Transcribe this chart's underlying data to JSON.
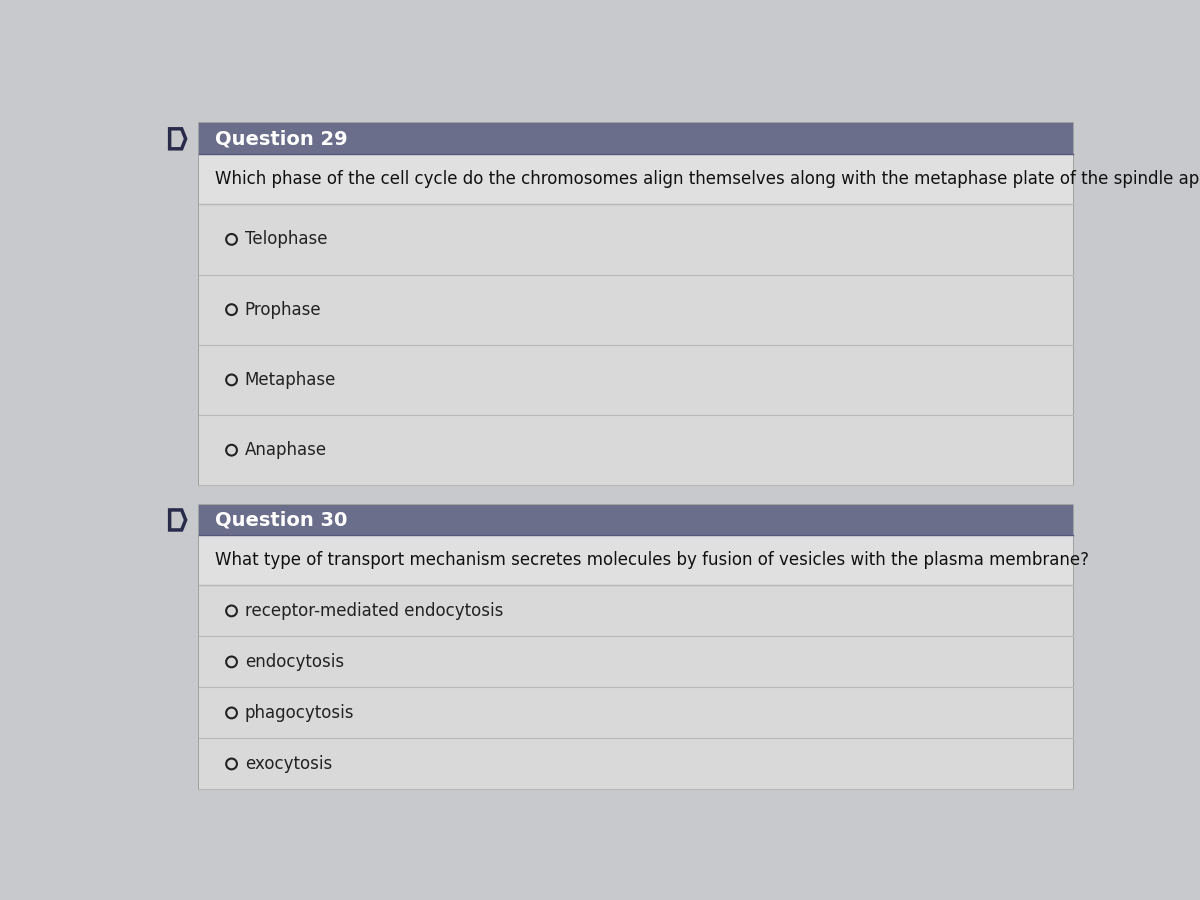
{
  "bg_color": "#c8c9cc",
  "card_bg": "#e2e2e2",
  "card_bg_inner": "#d8d8d8",
  "header_bg": "#6b6e8b",
  "header_text_color": "#ffffff",
  "question_area_bg": "#e0e0e0",
  "option_area_bg": "#d9d9d9",
  "line_color": "#b8b8b8",
  "question_text_color": "#111111",
  "option_text_color": "#222222",
  "icon_stroke": "#2a2a4a",
  "q1_number": "Question 29",
  "q1_text": "Which phase of the cell cycle do the chromosomes align themselves along with the metaphase plate of the spindle apparatus?",
  "q1_options": [
    "Telophase",
    "Prophase",
    "Metaphase",
    "Anaphase"
  ],
  "q2_number": "Question 30",
  "q2_text": "What type of transport mechanism secretes molecules by fusion of vesicles with the plasma membrane?",
  "q2_options": [
    "receptor-mediated endocytosis",
    "endocytosis",
    "phagocytosis",
    "exocytosis"
  ],
  "title_fontsize": 14,
  "question_fontsize": 12,
  "option_fontsize": 12
}
